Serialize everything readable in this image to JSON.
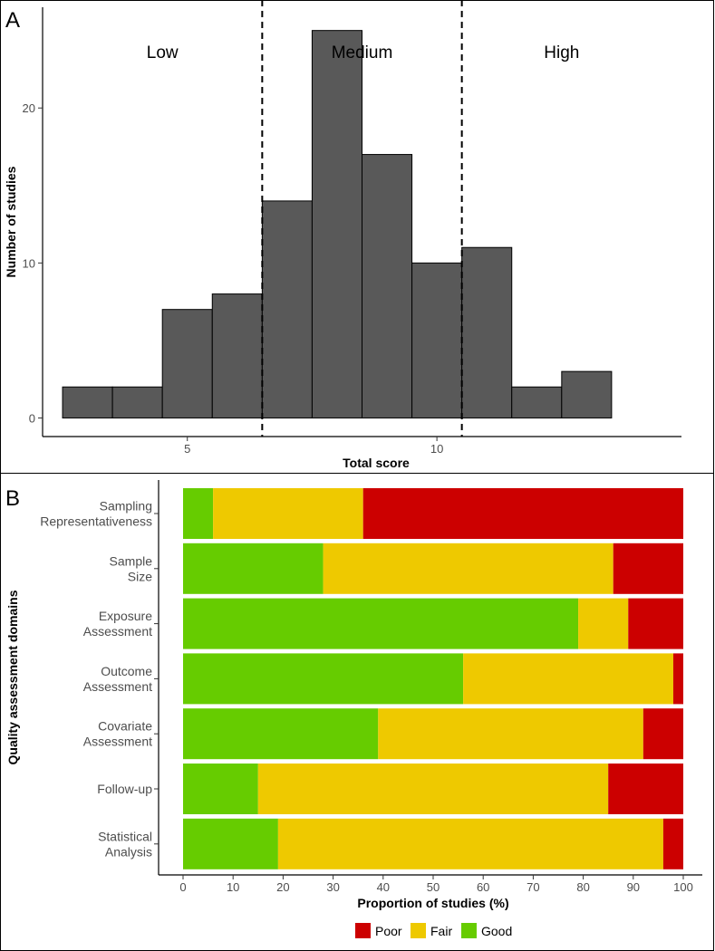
{
  "chart_data": [
    {
      "panel": "A",
      "type": "bar",
      "subtype": "histogram",
      "xlabel": "Total score",
      "ylabel": "Number of studies",
      "xlim": [
        2.1,
        14.9
      ],
      "ylim": [
        -1.2,
        26.5
      ],
      "xticks": [
        5,
        10
      ],
      "yticks": [
        0,
        10,
        20
      ],
      "bins": [
        {
          "start": 2.5,
          "end": 3.5,
          "count": 2
        },
        {
          "start": 3.5,
          "end": 4.5,
          "count": 2
        },
        {
          "start": 4.5,
          "end": 5.5,
          "count": 7
        },
        {
          "start": 5.5,
          "end": 6.5,
          "count": 8
        },
        {
          "start": 6.5,
          "end": 7.5,
          "count": 14
        },
        {
          "start": 7.5,
          "end": 8.5,
          "count": 25
        },
        {
          "start": 8.5,
          "end": 9.5,
          "count": 17
        },
        {
          "start": 9.5,
          "end": 10.5,
          "count": 10
        },
        {
          "start": 10.5,
          "end": 11.5,
          "count": 11
        },
        {
          "start": 11.5,
          "end": 12.5,
          "count": 2
        },
        {
          "start": 12.5,
          "end": 13.5,
          "count": 3
        },
        {
          "start": 13.5,
          "end": 14.5,
          "count": 0
        }
      ],
      "cutoffs": [
        6.5,
        10.5
      ],
      "regions": [
        {
          "label": "Low",
          "x": 4.5
        },
        {
          "label": "Medium",
          "x": 8.5
        },
        {
          "label": "High",
          "x": 12.5
        }
      ],
      "colors": {
        "bar": "#595959",
        "edge": "#000000",
        "cutoff": "#000000"
      }
    },
    {
      "panel": "B",
      "type": "bar",
      "subtype": "horizontal-stacked-percent",
      "xlabel": "Proportion of studies (%)",
      "ylabel": "Quality assessment domains",
      "xlim": [
        0,
        100
      ],
      "xticks": [
        0,
        10,
        20,
        30,
        40,
        50,
        60,
        70,
        80,
        90,
        100
      ],
      "categories": [
        [
          "Sampling",
          "Representativeness"
        ],
        [
          "Sample",
          "Size"
        ],
        [
          "Exposure",
          "Assessment"
        ],
        [
          "Outcome",
          "Assessment"
        ],
        [
          "Covariate",
          "Assessment"
        ],
        [
          "Follow-up"
        ],
        [
          "Statistical",
          "Analysis"
        ]
      ],
      "series": [
        {
          "name": "Good",
          "color": "#66cc00",
          "values": [
            6,
            28,
            79,
            56,
            39,
            15,
            19
          ]
        },
        {
          "name": "Fair",
          "color": "#eec900",
          "values": [
            30,
            58,
            10,
            42,
            53,
            70,
            77
          ]
        },
        {
          "name": "Poor",
          "color": "#cc0000",
          "values": [
            64,
            14,
            11,
            2,
            8,
            15,
            4
          ]
        }
      ],
      "legend": {
        "position": "bottom",
        "order": [
          "Poor",
          "Fair",
          "Good"
        ]
      }
    }
  ]
}
